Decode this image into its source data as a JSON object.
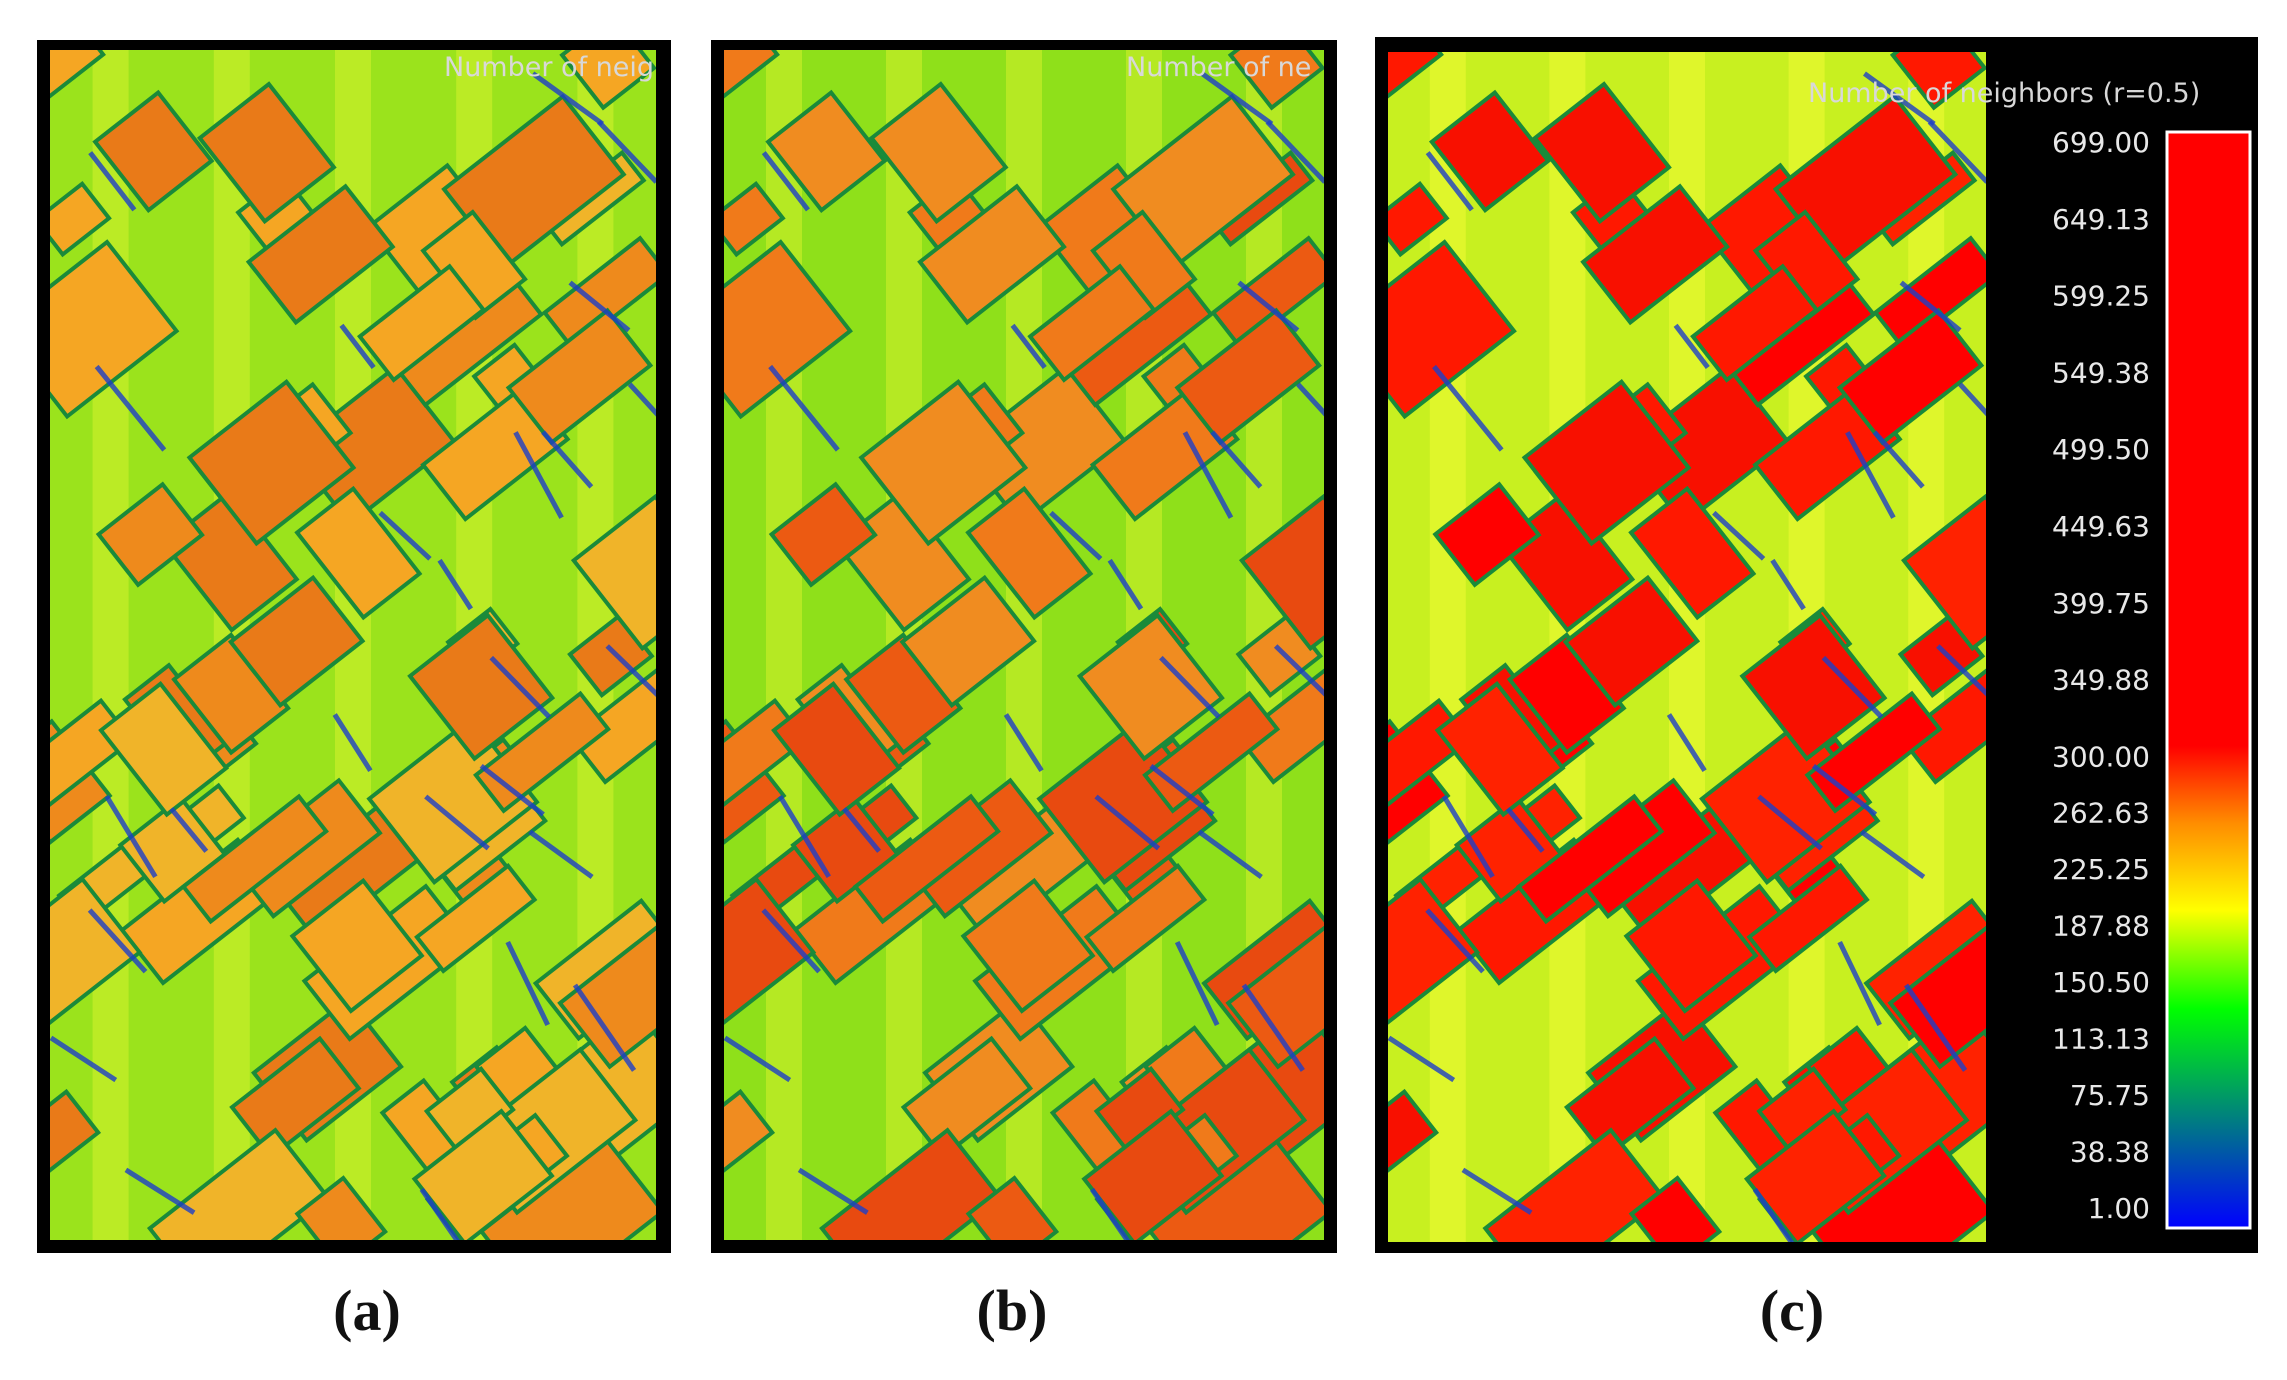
{
  "panels": [
    {
      "overlay_label": "Number of neig",
      "caption": "(a)"
    },
    {
      "overlay_label": "Number of ne",
      "caption": "(b)"
    },
    {
      "overlay_label": "Number of neighbors (r=0.5)",
      "caption": "(c)",
      "color_scale": [
        "699.00",
        "649.13",
        "599.25",
        "549.38",
        "499.50",
        "449.63",
        "399.75",
        "349.88",
        "300.00",
        "262.63",
        "225.25",
        "187.88",
        "150.50",
        "113.13",
        "75.75",
        "38.38",
        "1.00"
      ]
    }
  ]
}
